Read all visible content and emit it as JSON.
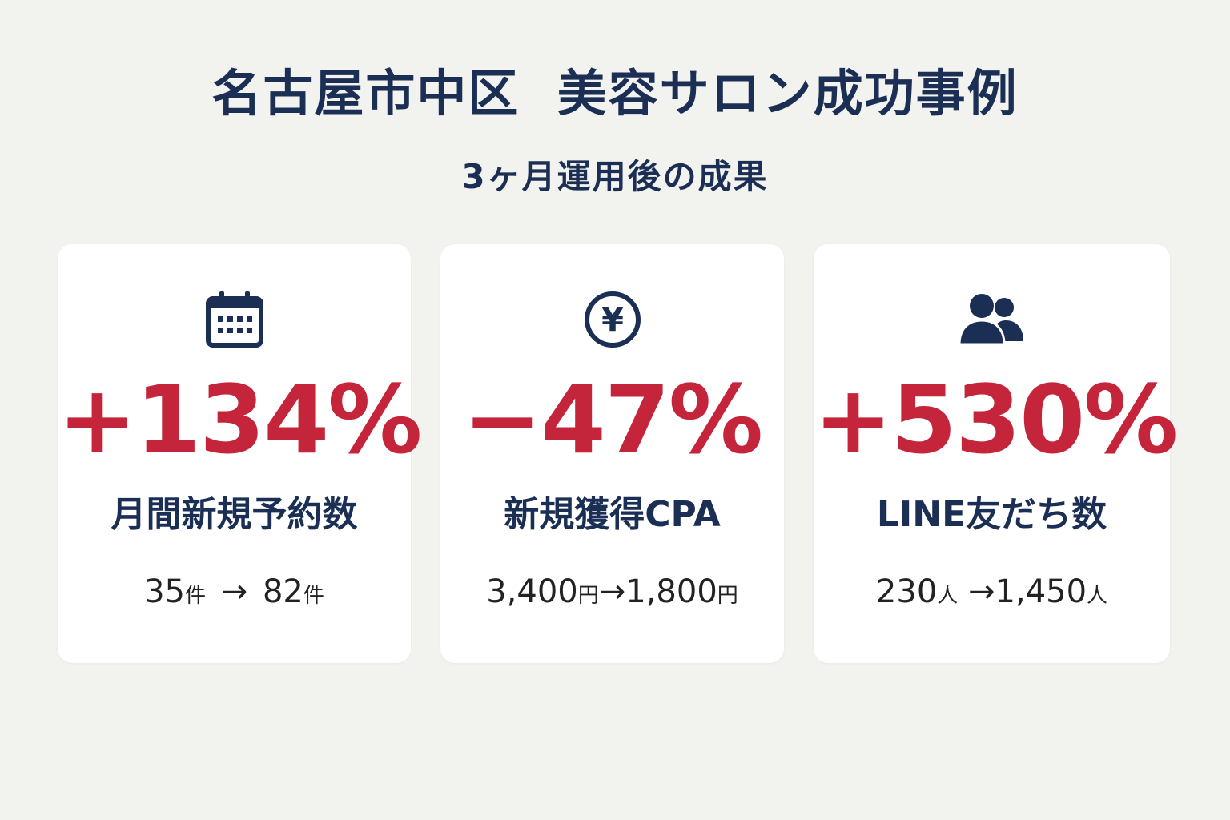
{
  "title": "名古屋市中区  美容サロン成功事例",
  "subtitle": "3ヶ月運用後の成果",
  "colors": {
    "background": "#f2f2ef",
    "navy": "#1b2f55",
    "accent_red": "#c4253a",
    "card": "#ffffff"
  },
  "cards": [
    {
      "icon": "calendar-icon",
      "value": "+134%",
      "label": "月間新規予約数",
      "before": "35",
      "before_unit": "件",
      "arrow": "→",
      "after": "82",
      "after_unit": "件"
    },
    {
      "icon": "yen-icon",
      "value": "−47%",
      "label": "新規獲得CPA",
      "before": "3,400",
      "before_unit": "円",
      "arrow": "→",
      "after": "1,800",
      "after_unit": "円"
    },
    {
      "icon": "users-icon",
      "value": "+530%",
      "label": "LINE友だち数",
      "before": "230",
      "before_unit": "人",
      "arrow": "→",
      "after": "1,450",
      "after_unit": "人"
    }
  ]
}
